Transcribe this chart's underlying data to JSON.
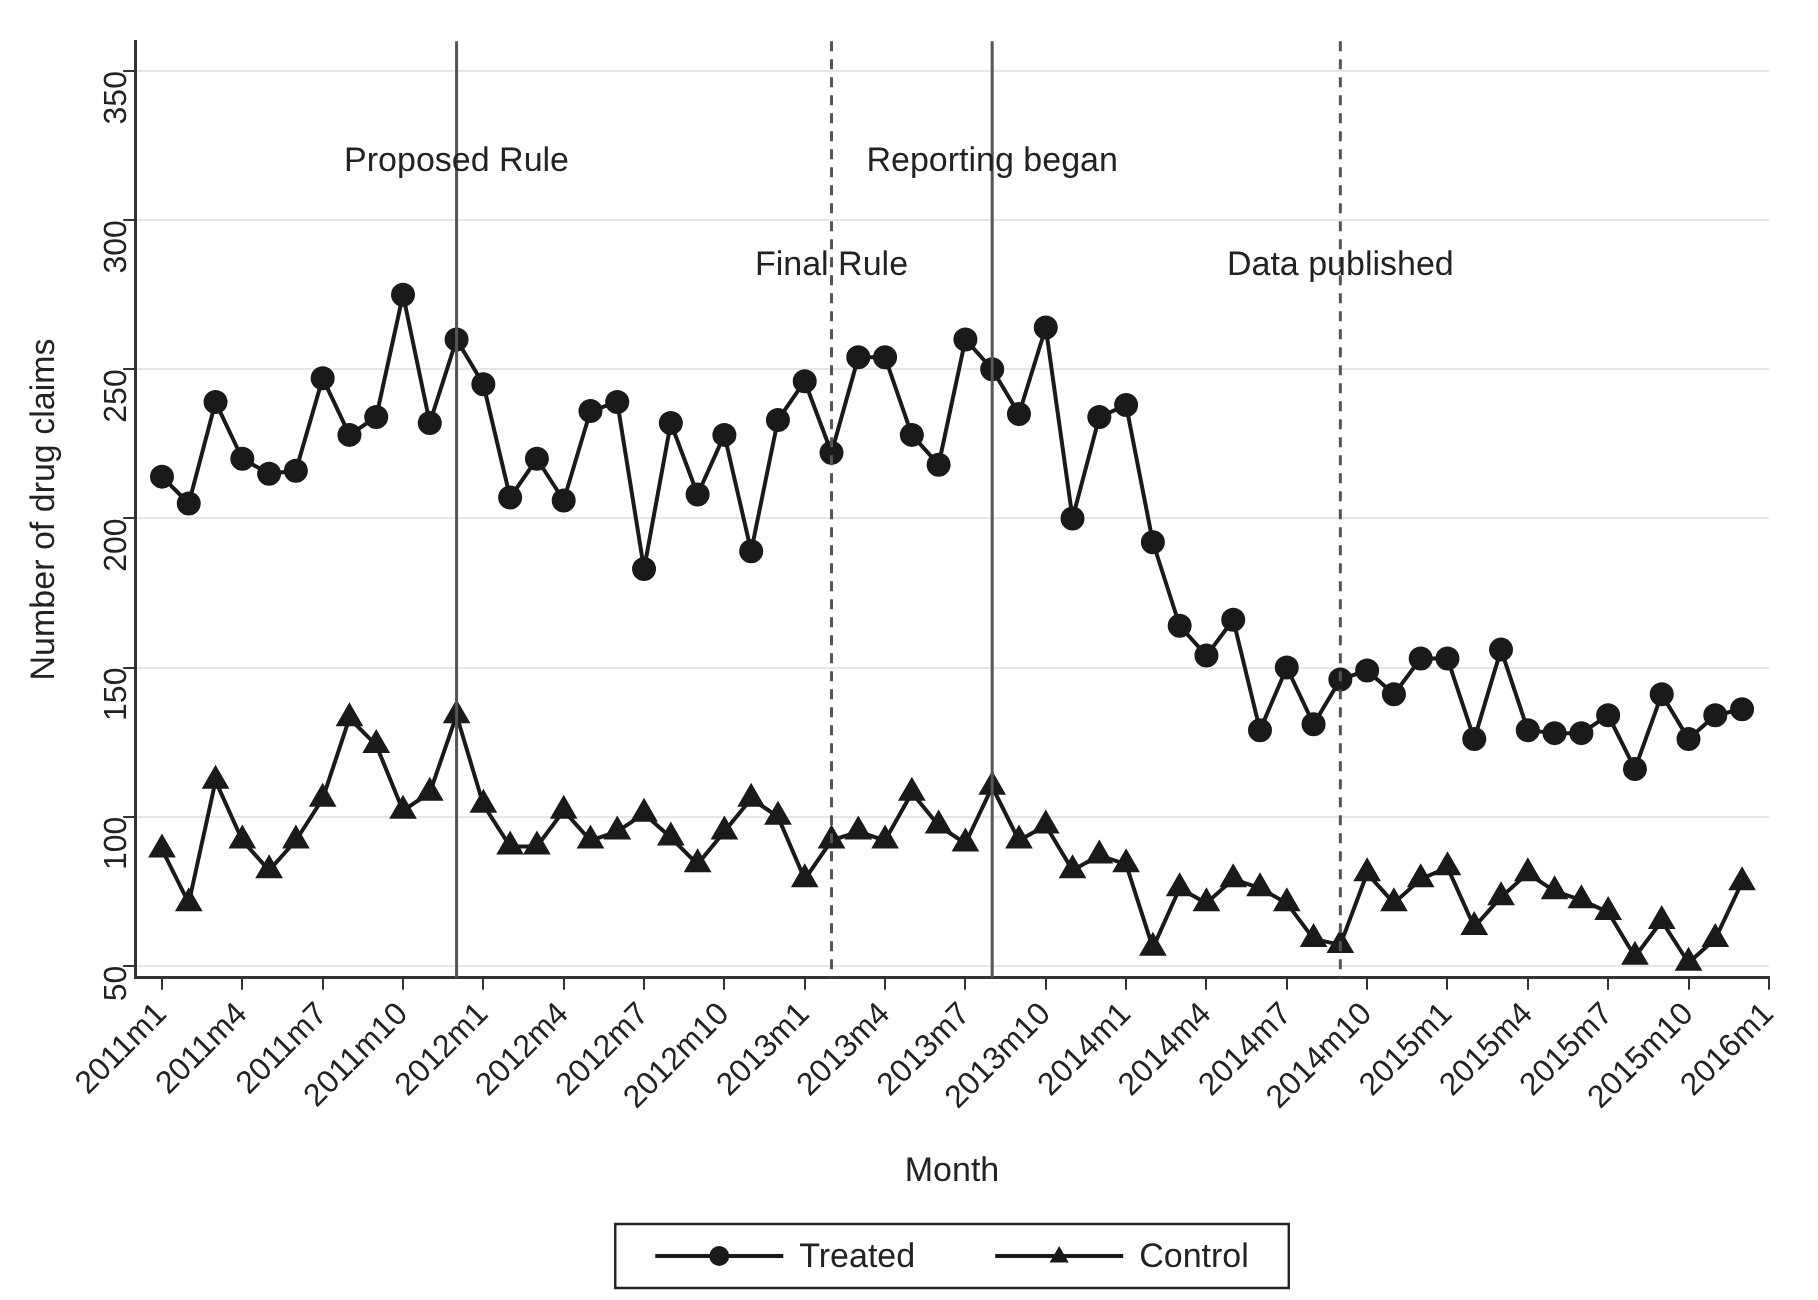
{
  "chart_data": {
    "type": "line",
    "xlabel": "Month",
    "ylabel": "Number of drug claims",
    "x": [
      "2011-01",
      "2011-02",
      "2011-03",
      "2011-04",
      "2011-05",
      "2011-06",
      "2011-07",
      "2011-08",
      "2011-09",
      "2011-10",
      "2011-11",
      "2011-12",
      "2012-01",
      "2012-02",
      "2012-03",
      "2012-04",
      "2012-05",
      "2012-06",
      "2012-07",
      "2012-08",
      "2012-09",
      "2012-10",
      "2012-11",
      "2012-12",
      "2013-01",
      "2013-02",
      "2013-03",
      "2013-04",
      "2013-05",
      "2013-06",
      "2013-07",
      "2013-08",
      "2013-09",
      "2013-10",
      "2013-11",
      "2013-12",
      "2014-01",
      "2014-02",
      "2014-03",
      "2014-04",
      "2014-05",
      "2014-06",
      "2014-07",
      "2014-08",
      "2014-09",
      "2014-10",
      "2014-11",
      "2014-12",
      "2015-01",
      "2015-02",
      "2015-03",
      "2015-04",
      "2015-05",
      "2015-06",
      "2015-07",
      "2015-08",
      "2015-09",
      "2015-10",
      "2015-11",
      "2015-12"
    ],
    "series": [
      {
        "name": "Treated",
        "color": "#1a1a1a",
        "marker": "circle",
        "values": [
          214,
          205,
          239,
          220,
          215,
          216,
          247,
          228,
          234,
          275,
          232,
          260,
          245,
          207,
          220,
          206,
          236,
          239,
          183,
          232,
          208,
          228,
          189,
          233,
          246,
          222,
          254,
          254,
          228,
          218,
          260,
          250,
          235,
          264,
          200,
          234,
          238,
          192,
          164,
          154,
          166,
          129,
          150,
          131,
          146,
          149,
          141,
          153,
          153,
          126,
          156,
          129,
          128,
          128,
          134,
          116,
          141,
          126,
          134,
          136
        ]
      },
      {
        "name": "Control",
        "color": "#1a1a1a",
        "marker": "triangle",
        "values": [
          89,
          71,
          112,
          92,
          82,
          92,
          106,
          133,
          124,
          102,
          108,
          134,
          104,
          90,
          90,
          102,
          92,
          95,
          101,
          93,
          84,
          95,
          106,
          100,
          79,
          92,
          95,
          92,
          108,
          97,
          91,
          110,
          92,
          97,
          82,
          87,
          84,
          56,
          76,
          71,
          79,
          76,
          71,
          59,
          57,
          81,
          71,
          79,
          83,
          63,
          73,
          81,
          75,
          72,
          68,
          53,
          65,
          51,
          59,
          78
        ]
      }
    ],
    "xlim": [
      "2010-12",
      "2016-01"
    ],
    "xticks": [
      {
        "value": "2011-01",
        "label": "2011m1"
      },
      {
        "value": "2011-04",
        "label": "2011m4"
      },
      {
        "value": "2011-07",
        "label": "2011m7"
      },
      {
        "value": "2011-10",
        "label": "2011m10"
      },
      {
        "value": "2012-01",
        "label": "2012m1"
      },
      {
        "value": "2012-04",
        "label": "2012m4"
      },
      {
        "value": "2012-07",
        "label": "2012m7"
      },
      {
        "value": "2012-10",
        "label": "2012m10"
      },
      {
        "value": "2013-01",
        "label": "2013m1"
      },
      {
        "value": "2013-04",
        "label": "2013m4"
      },
      {
        "value": "2013-07",
        "label": "2013m7"
      },
      {
        "value": "2013-10",
        "label": "2013m10"
      },
      {
        "value": "2014-01",
        "label": "2014m1"
      },
      {
        "value": "2014-04",
        "label": "2014m4"
      },
      {
        "value": "2014-07",
        "label": "2014m7"
      },
      {
        "value": "2014-10",
        "label": "2014m10"
      },
      {
        "value": "2015-01",
        "label": "2015m1"
      },
      {
        "value": "2015-04",
        "label": "2015m4"
      },
      {
        "value": "2015-07",
        "label": "2015m7"
      },
      {
        "value": "2015-10",
        "label": "2015m10"
      },
      {
        "value": "2016-01",
        "label": "2016m1"
      }
    ],
    "ylim": [
      46,
      360
    ],
    "yticks": [
      50,
      100,
      150,
      200,
      250,
      300,
      350
    ],
    "grid": "y",
    "legend": "bottom",
    "ref_lines": [
      {
        "axis": "x",
        "value": "2011-12",
        "label": "Proposed Rule",
        "color": "#555555",
        "line_style": "solid"
      },
      {
        "axis": "x",
        "value": "2013-02",
        "label": "Final Rule",
        "color": "#555555",
        "line_style": "dashed"
      },
      {
        "axis": "x",
        "value": "2013-08",
        "label": "Reporting began",
        "color": "#555555",
        "line_style": "solid"
      },
      {
        "axis": "x",
        "value": "2014-09",
        "label": "Data published",
        "color": "#555555",
        "line_style": "dashed"
      }
    ]
  }
}
